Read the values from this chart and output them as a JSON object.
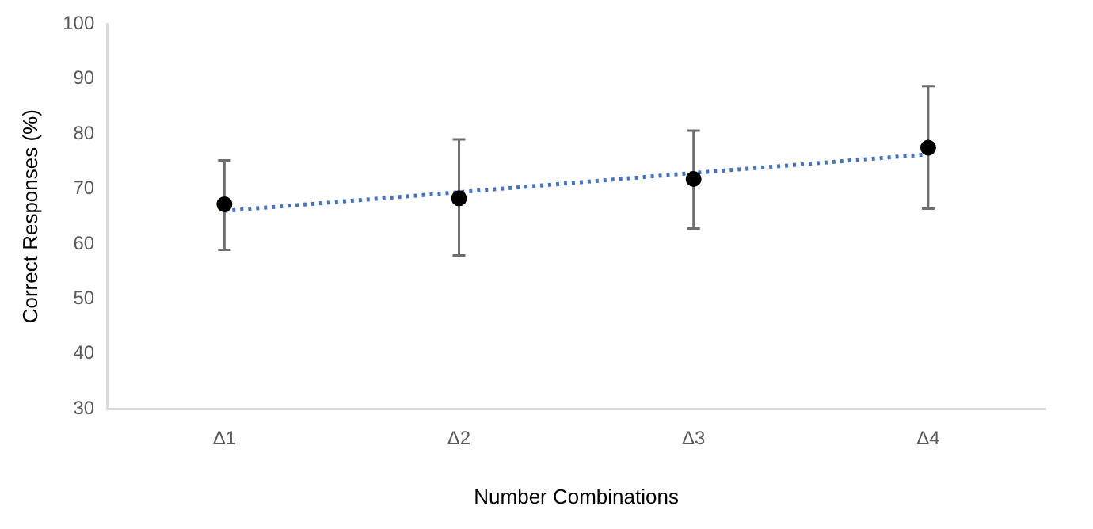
{
  "chart_data": {
    "type": "scatter",
    "xlabel": "Number Combinations",
    "ylabel": "Correct Responses (%)",
    "categories": [
      "Δ1",
      "Δ2",
      "Δ3",
      "Δ4"
    ],
    "series": [
      {
        "color": "#000000",
        "marker": "circle",
        "x": [
          "Δ1",
          "Δ2",
          "Δ3",
          "Δ4"
        ],
        "values": [
          67.2,
          68.3,
          71.8,
          77.5
        ],
        "errors": [
          [
            58.9,
            75.2
          ],
          [
            57.9,
            79
          ],
          [
            62.8,
            80.6
          ],
          [
            66.4,
            88.7
          ]
        ]
      },
      {
        "type": "line",
        "color": "#4472c4",
        "line_style": "dotted",
        "marker": "none",
        "values": [
          66,
          69.4,
          72.9,
          76.3
        ]
      }
    ],
    "ylim": [
      30,
      100
    ],
    "yticks": [
      30,
      40,
      50,
      60,
      70,
      80,
      90,
      100
    ],
    "grid": false,
    "legend": false
  }
}
